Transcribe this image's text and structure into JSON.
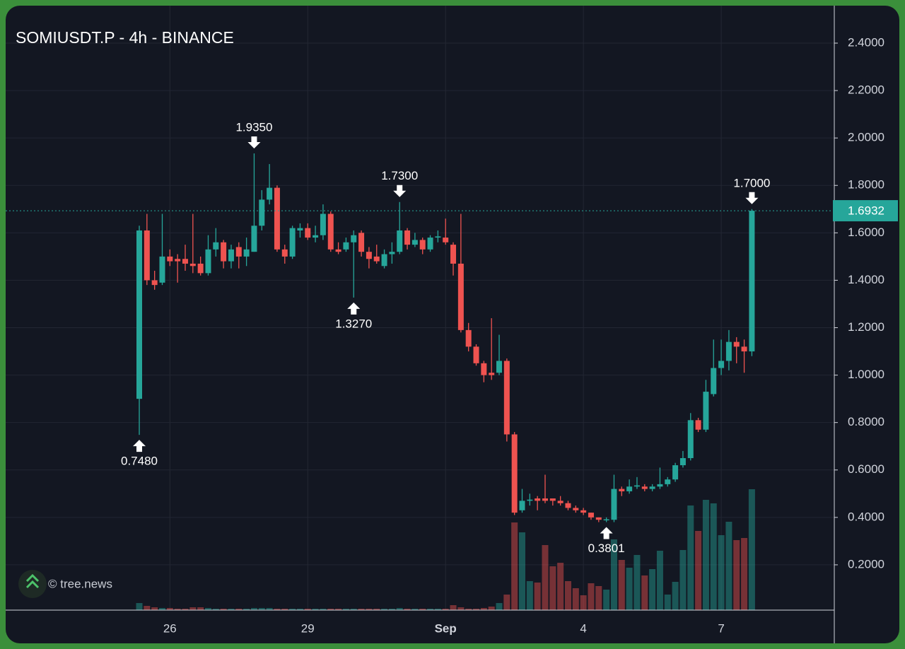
{
  "chart_data": {
    "type": "candlestick",
    "title": "SOMIUSDT.P - 4h - BINANCE",
    "watermark": "© tree.news",
    "categories": [
      null,
      null,
      null,
      null,
      "26",
      null,
      null,
      null,
      null,
      null,
      null,
      null,
      null,
      null,
      null,
      null,
      null,
      null,
      null,
      null,
      null,
      null,
      "29",
      null,
      null,
      null,
      null,
      null,
      null,
      null,
      null,
      null,
      null,
      null,
      null,
      null,
      null,
      null,
      null,
      null,
      "Sep",
      null,
      null,
      null,
      null,
      null,
      null,
      null,
      null,
      null,
      null,
      null,
      null,
      null,
      null,
      null,
      null,
      null,
      "4",
      null,
      null,
      null,
      null,
      null,
      null,
      null,
      null,
      null,
      null,
      null,
      null,
      null,
      null,
      null,
      null,
      null,
      "7",
      null,
      null,
      null,
      null
    ],
    "open": [
      0.9,
      1.61,
      1.4,
      1.39,
      1.5,
      1.49,
      1.49,
      1.47,
      1.47,
      1.43,
      1.53,
      1.56,
      1.48,
      1.54,
      1.5,
      1.52,
      1.63,
      1.74,
      1.79,
      1.53,
      1.5,
      1.61,
      1.62,
      1.58,
      1.59,
      1.68,
      1.53,
      1.53,
      1.56,
      1.6,
      1.52,
      1.5,
      1.46,
      1.51,
      1.52,
      1.61,
      1.55,
      1.57,
      1.53,
      1.58,
      1.58,
      1.55,
      1.47,
      1.19,
      1.12,
      1.05,
      1.01,
      1.01,
      1.06,
      0.75,
      0.43,
      0.47,
      0.48,
      0.48,
      0.48,
      0.47,
      0.46,
      0.44,
      0.43,
      0.42,
      0.4,
      0.39,
      0.39,
      0.52,
      0.51,
      0.53,
      0.53,
      0.52,
      0.53,
      0.54,
      0.56,
      0.62,
      0.65,
      0.81,
      0.77,
      0.92,
      1.03,
      1.06,
      1.14,
      1.12,
      1.1
    ],
    "high": [
      1.63,
      1.68,
      1.44,
      1.68,
      1.53,
      1.51,
      1.55,
      1.68,
      1.5,
      1.59,
      1.62,
      1.57,
      1.55,
      1.56,
      1.58,
      1.935,
      1.78,
      1.89,
      1.8,
      1.55,
      1.63,
      1.64,
      1.64,
      1.63,
      1.72,
      1.69,
      1.56,
      1.58,
      1.61,
      1.61,
      1.54,
      1.55,
      1.53,
      1.56,
      1.73,
      1.62,
      1.6,
      1.58,
      1.59,
      1.61,
      1.66,
      1.56,
      1.68,
      1.22,
      1.13,
      1.06,
      1.24,
      1.17,
      1.07,
      0.76,
      0.52,
      0.5,
      0.49,
      0.58,
      0.48,
      0.49,
      0.47,
      0.45,
      0.44,
      0.42,
      0.4,
      0.4,
      0.58,
      0.53,
      0.56,
      0.57,
      0.54,
      0.54,
      0.61,
      0.57,
      0.63,
      0.68,
      0.84,
      0.82,
      0.98,
      1.15,
      1.15,
      1.19,
      1.16,
      1.15,
      1.7
    ],
    "low": [
      0.748,
      1.38,
      1.36,
      1.38,
      1.46,
      1.39,
      1.44,
      1.43,
      1.42,
      1.42,
      1.5,
      1.45,
      1.45,
      1.45,
      1.46,
      1.52,
      1.61,
      1.72,
      1.52,
      1.47,
      1.49,
      1.58,
      1.57,
      1.56,
      1.57,
      1.52,
      1.51,
      1.52,
      1.327,
      1.5,
      1.45,
      1.47,
      1.45,
      1.47,
      1.51,
      1.53,
      1.54,
      1.51,
      1.52,
      1.56,
      1.55,
      1.42,
      1.18,
      1.1,
      1.04,
      0.97,
      0.98,
      1.0,
      0.72,
      0.41,
      0.42,
      0.45,
      0.43,
      0.46,
      0.45,
      0.45,
      0.43,
      0.42,
      0.41,
      0.39,
      0.38,
      0.3801,
      0.38,
      0.49,
      0.5,
      0.52,
      0.51,
      0.51,
      0.52,
      0.53,
      0.55,
      0.61,
      0.64,
      0.76,
      0.76,
      0.91,
      1.0,
      1.02,
      1.05,
      1.01,
      1.08
    ],
    "close": [
      1.61,
      1.4,
      1.38,
      1.5,
      1.48,
      1.48,
      1.47,
      1.46,
      1.43,
      1.53,
      1.56,
      1.48,
      1.53,
      1.5,
      1.53,
      1.63,
      1.74,
      1.79,
      1.53,
      1.5,
      1.62,
      1.62,
      1.58,
      1.59,
      1.68,
      1.53,
      1.52,
      1.56,
      1.59,
      1.52,
      1.49,
      1.48,
      1.51,
      1.52,
      1.61,
      1.55,
      1.57,
      1.53,
      1.58,
      1.585,
      1.56,
      1.47,
      1.19,
      1.12,
      1.05,
      1.0,
      1.0,
      1.06,
      0.75,
      0.42,
      0.47,
      0.475,
      0.47,
      0.47,
      0.47,
      0.46,
      0.44,
      0.43,
      0.42,
      0.4,
      0.39,
      0.392,
      0.52,
      0.51,
      0.53,
      0.535,
      0.52,
      0.53,
      0.54,
      0.56,
      0.62,
      0.65,
      0.81,
      0.77,
      0.93,
      1.03,
      1.06,
      1.14,
      1.12,
      1.1,
      1.6932
    ],
    "volume": [
      10,
      6,
      4,
      3,
      3,
      2,
      2,
      4,
      4,
      3,
      2,
      2,
      2,
      2,
      2,
      3,
      3,
      3,
      2,
      2,
      2,
      2,
      2,
      2,
      2,
      2,
      2,
      2,
      2,
      2,
      2,
      2,
      2,
      2,
      3,
      2,
      2,
      2,
      2,
      2,
      2,
      7,
      4,
      2,
      2,
      3,
      5,
      10,
      22,
      124,
      110,
      41,
      39,
      92,
      62,
      67,
      41,
      31,
      21,
      38,
      34,
      29,
      100,
      71,
      60,
      78,
      49,
      58,
      84,
      22,
      40,
      85,
      148,
      112,
      156,
      151,
      106,
      125,
      99,
      102,
      171
    ],
    "up_color": "#26a69a",
    "down_color": "#ef5350",
    "ylim": [
      0.009,
      2.558
    ],
    "yticks": [
      {
        "value": 0.2,
        "label": "0.2000"
      },
      {
        "value": 0.4,
        "label": "0.4000"
      },
      {
        "value": 0.6,
        "label": "0.6000"
      },
      {
        "value": 0.8,
        "label": "0.8000"
      },
      {
        "value": 1.0,
        "label": "1.0000"
      },
      {
        "value": 1.2,
        "label": "1.2000"
      },
      {
        "value": 1.4,
        "label": "1.4000"
      },
      {
        "value": 1.6,
        "label": "1.6000"
      },
      {
        "value": 1.8,
        "label": "1.8000"
      },
      {
        "value": 2.0,
        "label": "2.0000"
      },
      {
        "value": 2.2,
        "label": "2.2000"
      },
      {
        "value": 2.4,
        "label": "2.4000"
      }
    ],
    "annotations": [
      {
        "value": 0.748,
        "label": "0.7480",
        "side": "low"
      },
      {
        "value": 1.935,
        "label": "1.9350",
        "side": "high"
      },
      {
        "value": 1.327,
        "label": "1.3270",
        "side": "low"
      },
      {
        "value": 1.73,
        "label": "1.7300",
        "side": "high"
      },
      {
        "value": 0.3801,
        "label": "0.3801",
        "side": "low"
      },
      {
        "value": 1.7,
        "label": "1.7000",
        "side": "high"
      }
    ],
    "last_price": {
      "value": 1.6932,
      "label": "1.6932"
    },
    "grid": true
  }
}
